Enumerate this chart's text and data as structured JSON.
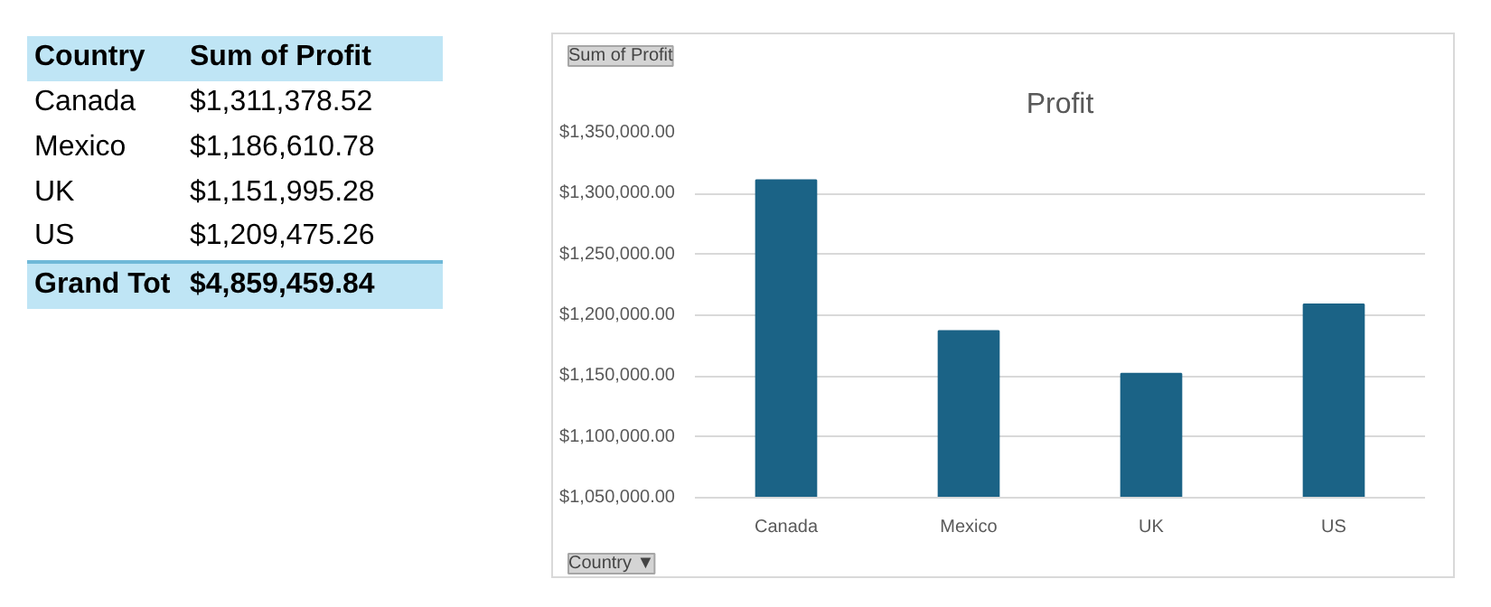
{
  "chart_data": [
    {
      "type": "other",
      "annotations": [
        "Country",
        "Sum of Profit",
        "Canada",
        "$1,311,378.52",
        "Mexico",
        "$1,186,610.78",
        "UK",
        "$1,151,995.28",
        "US",
        "$1,209,475.26",
        "Grand Tot",
        "$4,859,459.84"
      ]
    },
    {
      "type": "bar",
      "title": "Profit",
      "categories": [
        "Canada",
        "Mexico",
        "UK",
        "US"
      ],
      "values": [
        1311000,
        1187000,
        1152000,
        1209000
      ],
      "color": "#1b6386",
      "ylim": [
        1050000,
        1350000
      ],
      "yticks": [
        {
          "value": 1050000,
          "label": "$1,050,000.00"
        },
        {
          "value": 1100000,
          "label": "$1,100,000.00"
        },
        {
          "value": 1150000,
          "label": "$1,150,000.00"
        },
        {
          "value": 1200000,
          "label": "$1,200,000.00"
        },
        {
          "value": 1250000,
          "label": "$1,250,000.00"
        },
        {
          "value": 1300000,
          "label": "$1,300,000.00"
        },
        {
          "value": 1350000,
          "label": "$1,350,000.00"
        }
      ],
      "grid": "y",
      "annotations": [
        "Sum of Profit",
        "Country ▼"
      ]
    }
  ]
}
